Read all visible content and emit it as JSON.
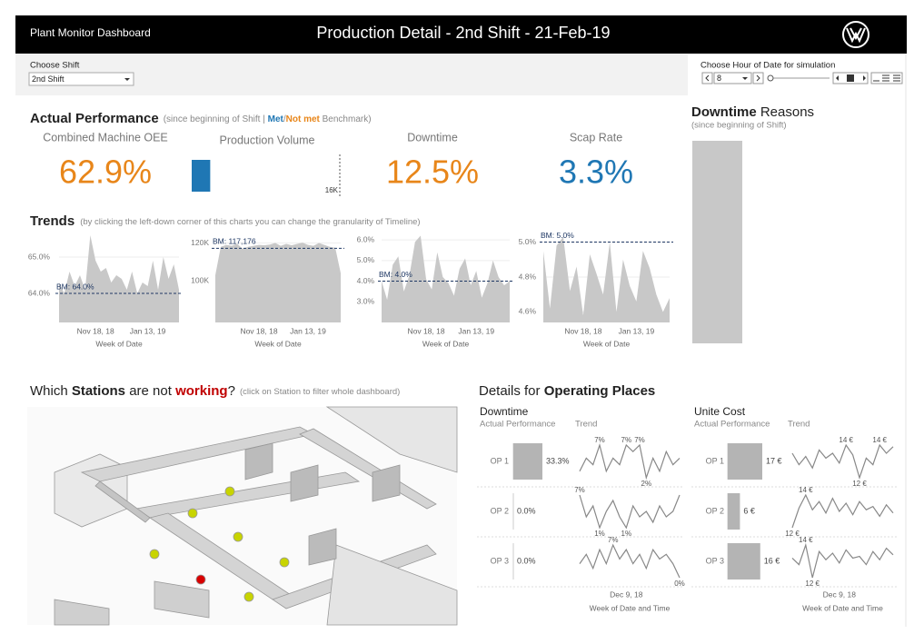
{
  "header": {
    "app_name": "Plant Monitor Dashboard",
    "title": "Production Detail - 2nd Shift - 21-Feb-19"
  },
  "filters": {
    "shift_label": "Choose Shift",
    "shift_value": "2nd Shift",
    "hour_label": "Choose Hour of Date for simulation",
    "hour_value": "8"
  },
  "performance": {
    "title": "Actual Performance",
    "subtitle_pre": "(since beginning of Shift | ",
    "met": "Met",
    "sep": "/",
    "not_met": "Not met",
    "subtitle_post": " Benchmark)",
    "kpis": [
      {
        "label": "Combined Machine OEE",
        "value": "62.9%",
        "color": "#e8861a"
      },
      {
        "label": "Downtime",
        "value": "12.5%",
        "color": "#e8861a"
      },
      {
        "label": "Scap Rate",
        "value": "3.3%",
        "color": "#1f77b4"
      }
    ],
    "volume": {
      "type": "bar",
      "label": "Production Volume",
      "value": 2000,
      "xlim": [
        0,
        16000
      ],
      "xticks": [
        {
          "value": 16000,
          "label": "16K"
        }
      ],
      "color": "#1f77b4"
    }
  },
  "downtime_reasons": {
    "title_bold": "Downtime",
    "title_rest": " Reasons",
    "subtitle": "(since beginning of Shift)"
  },
  "trends": {
    "title": "Trends",
    "subtitle": "(by clicking the left-down corner of this charts you can change the granularity of Timeline)",
    "charts": [
      {
        "type": "area",
        "color": "#c8c8c8",
        "xlabel": "Week of Date",
        "categories": [
          null,
          null,
          null,
          null,
          null,
          null,
          null,
          "Nov 18, 18",
          null,
          null,
          null,
          null,
          null,
          null,
          null,
          null,
          null,
          "Jan 13, 19",
          null,
          null,
          null,
          null,
          null,
          null
        ],
        "values": [
          64.3,
          64.0,
          64.6,
          64.2,
          64.5,
          64.1,
          65.6,
          64.9,
          64.6,
          64.7,
          64.3,
          64.5,
          64.4,
          64.1,
          64.6,
          64.0,
          64.3,
          64.2,
          64.9,
          64.1,
          65.0,
          64.4,
          64.8,
          64.1
        ],
        "ylim": [
          63.2,
          65.7
        ],
        "yticks": [
          {
            "value": 64,
            "label": "64.0%"
          },
          {
            "value": 65,
            "label": "65.0%"
          }
        ],
        "benchmark": {
          "value": 64,
          "label": "BM: 64.0%"
        }
      },
      {
        "type": "area",
        "color": "#c8c8c8",
        "xlabel": "Week of Date",
        "categories": [
          null,
          null,
          null,
          null,
          null,
          null,
          null,
          null,
          "Nov 18, 18",
          null,
          null,
          null,
          null,
          null,
          null,
          null,
          null,
          "Jan 13, 19",
          null,
          null,
          null,
          null,
          null,
          null
        ],
        "values": [
          103000,
          118000,
          119000,
          118500,
          119500,
          117000,
          118000,
          118500,
          119000,
          118800,
          119200,
          120000,
          118500,
          119500,
          118800,
          119500,
          120200,
          119000,
          118500,
          120000,
          119000,
          118000,
          117500,
          104000
        ],
        "ylim": [
          78000,
          126000
        ],
        "yticks": [
          {
            "value": 100000,
            "label": "100K"
          },
          {
            "value": 120000,
            "label": "120K"
          }
        ],
        "benchmark": {
          "value": 117176,
          "label": "BM: 117,176"
        }
      },
      {
        "type": "area",
        "color": "#c8c8c8",
        "xlabel": "Week of Date",
        "categories": [
          null,
          null,
          null,
          null,
          null,
          null,
          null,
          null,
          "Nov 18, 18",
          null,
          null,
          null,
          null,
          null,
          null,
          null,
          null,
          "Jan 13, 19",
          null,
          null,
          null,
          null,
          null,
          null
        ],
        "values": [
          4.0,
          3.1,
          4.8,
          5.2,
          3.5,
          4.3,
          5.9,
          6.2,
          4.1,
          3.6,
          5.4,
          4.2,
          3.9,
          3.3,
          4.6,
          5.1,
          3.8,
          4.5,
          3.2,
          3.9,
          5.0,
          4.2,
          3.8,
          4.0
        ],
        "ylim": [
          2.0,
          6.4
        ],
        "yticks": [
          {
            "value": 3,
            "label": "3.0%"
          },
          {
            "value": 4,
            "label": "4.0%"
          },
          {
            "value": 5,
            "label": "5.0%"
          },
          {
            "value": 6,
            "label": "6.0%"
          }
        ],
        "benchmark": {
          "value": 4,
          "label": "BM: 4.0%"
        }
      },
      {
        "type": "area",
        "color": "#c8c8c8",
        "xlabel": "Week of Date",
        "categories": [
          null,
          null,
          null,
          null,
          null,
          null,
          "Nov 18, 18",
          null,
          null,
          null,
          null,
          null,
          null,
          null,
          "Jan 13, 19",
          null,
          null,
          null,
          null,
          null
        ],
        "values": [
          4.95,
          4.62,
          4.98,
          5.03,
          4.72,
          4.86,
          4.58,
          4.93,
          4.82,
          4.7,
          5.0,
          4.6,
          4.9,
          4.75,
          4.66,
          4.95,
          4.85,
          4.7,
          4.6,
          4.68
        ],
        "ylim": [
          4.54,
          5.06
        ],
        "yticks": [
          {
            "value": 4.6,
            "label": "4.6%"
          },
          {
            "value": 4.8,
            "label": "4.8%"
          },
          {
            "value": 5,
            "label": "5.0%"
          }
        ],
        "benchmark": {
          "value": 5,
          "label": "BM: 5.0%"
        }
      }
    ]
  },
  "stations": {
    "pre": "Which ",
    "bold": "Stations",
    "mid": " are not ",
    "alert": "working",
    "post": "?",
    "subtitle": "(click on Station to filter whole dashboard)"
  },
  "details": {
    "title_pre": "Details for ",
    "title_bold": "Operating Places",
    "columns": [
      {
        "title": "Downtime",
        "actual_label": "Actual Performance",
        "trend_label": "Trend",
        "xlabel": "Week of Date and Time",
        "categories": [
          null,
          null,
          null,
          null,
          null,
          null,
          null,
          "Dec 9, 18",
          null,
          null,
          null,
          null,
          null,
          null,
          null,
          null
        ],
        "rows": [
          {
            "name": "OP 1",
            "value": 33.3,
            "value_label": "33.3%",
            "trend": [
              3,
              5,
              4,
              7,
              3,
              5,
              4,
              7,
              6,
              7,
              2,
              5,
              3,
              6,
              4,
              5
            ],
            "trend_labels": [
              null,
              null,
              null,
              "7%",
              null,
              null,
              null,
              "7%",
              null,
              "7%",
              "2%",
              null,
              null,
              null,
              null,
              null
            ]
          },
          {
            "name": "OP 2",
            "value": 0,
            "value_label": "0.0%",
            "trend": [
              7,
              3,
              5,
              1,
              4,
              6,
              3,
              1,
              5,
              3,
              4,
              2,
              5,
              3,
              4,
              7
            ],
            "trend_labels": [
              "7%",
              null,
              null,
              "1%",
              null,
              null,
              null,
              "1%",
              null,
              null,
              null,
              null,
              null,
              null,
              null,
              null
            ]
          },
          {
            "name": "OP 3",
            "value": 0,
            "value_label": "0.0%",
            "trend": [
              3,
              5,
              2,
              6,
              3,
              7,
              4,
              6,
              3,
              5,
              2,
              6,
              4,
              5,
              3,
              0
            ],
            "trend_labels": [
              null,
              null,
              null,
              null,
              null,
              "7%",
              null,
              null,
              null,
              null,
              null,
              null,
              null,
              null,
              null,
              "0%"
            ]
          }
        ]
      },
      {
        "title": "Unite Cost",
        "actual_label": "Actual Performance",
        "trend_label": "Trend",
        "xlabel": "Week of Date and Time",
        "categories": [
          null,
          null,
          null,
          null,
          null,
          null,
          null,
          "Dec 9, 18",
          null,
          null,
          null,
          null,
          null,
          null,
          null,
          null
        ],
        "rows": [
          {
            "name": "OP 1",
            "value": 17,
            "value_label": "17 €",
            "trend": [
              13.5,
              12.8,
              13.3,
              12.6,
              13.7,
              13.2,
              13.5,
              12.9,
              14,
              13.4,
              12,
              13.2,
              12.8,
              14,
              13.5,
              13.9
            ],
            "trend_labels": [
              null,
              null,
              null,
              null,
              null,
              null,
              null,
              null,
              "14 €",
              null,
              "12 €",
              null,
              null,
              "14 €",
              null,
              null
            ]
          },
          {
            "name": "OP 2",
            "value": 6,
            "value_label": "6 €",
            "trend": [
              12,
              13.2,
              14,
              13.1,
              13.6,
              12.9,
              13.8,
              13,
              13.5,
              12.8,
              13.6,
              13.1,
              13.3,
              12.7,
              13.4,
              12.9
            ],
            "trend_labels": [
              "12 €",
              null,
              "14 €",
              null,
              null,
              null,
              null,
              null,
              null,
              null,
              null,
              null,
              null,
              null,
              null,
              null
            ]
          },
          {
            "name": "OP 3",
            "value": 16,
            "value_label": "16 €",
            "trend": [
              13.2,
              12.8,
              14,
              12,
              13.6,
              13.1,
              13.5,
              12.9,
              13.7,
              13.2,
              13.3,
              12.8,
              13.6,
              13.1,
              13.8,
              13.4
            ],
            "trend_labels": [
              null,
              null,
              "14 €",
              "12 €",
              null,
              null,
              null,
              null,
              null,
              null,
              null,
              null,
              null,
              null,
              null,
              null
            ]
          }
        ]
      }
    ]
  }
}
